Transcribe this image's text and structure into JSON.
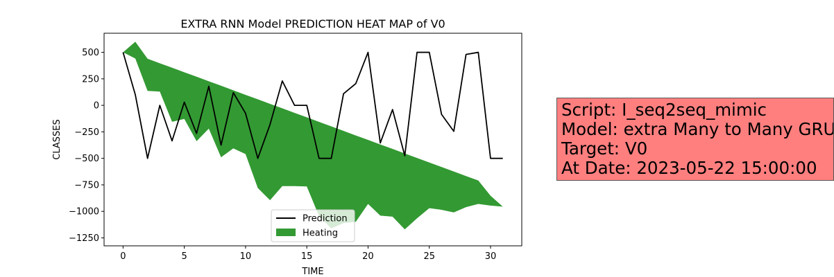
{
  "chart_data": {
    "type": "line",
    "title": "EXTRA RNN Model PREDICTION HEAT MAP of V0",
    "xlabel": "TIME",
    "ylabel": "CLASSES",
    "xlim": [
      -1.55,
      32.55
    ],
    "ylim": [
      -1325,
      680
    ],
    "x_ticks": [
      0,
      5,
      10,
      15,
      20,
      25,
      30
    ],
    "y_ticks": [
      500,
      250,
      0,
      -250,
      -500,
      -750,
      -1000,
      -1250
    ],
    "x_tick_labels": [
      "0",
      "5",
      "10",
      "15",
      "20",
      "25",
      "30"
    ],
    "y_tick_labels": [
      "500",
      "250",
      "0",
      "−250",
      "−500",
      "−750",
      "−1000",
      "−1250"
    ],
    "grid": false,
    "legend_position": "lower center",
    "series": [
      {
        "name": "Prediction",
        "type": "line",
        "color": "#000000",
        "x": [
          0,
          1,
          2,
          3,
          4,
          5,
          6,
          7,
          8,
          9,
          10,
          11,
          12,
          13,
          14,
          15,
          16,
          17,
          18,
          19,
          20,
          21,
          22,
          23,
          24,
          25,
          26,
          27,
          28,
          29,
          30,
          31
        ],
        "y": [
          500,
          100,
          -500,
          0,
          -335,
          30,
          -265,
          180,
          -375,
          120,
          -75,
          -500,
          -180,
          230,
          0,
          0,
          -500,
          -500,
          110,
          205,
          500,
          -355,
          -40,
          -475,
          500,
          500,
          -85,
          -245,
          480,
          500,
          -500,
          -500
        ]
      },
      {
        "name": "Heating",
        "type": "area",
        "color": "#339933",
        "x": [
          0,
          1,
          2,
          3,
          4,
          5,
          6,
          7,
          8,
          9,
          10,
          11,
          12,
          13,
          14,
          15,
          16,
          17,
          18,
          19,
          20,
          21,
          22,
          23,
          24,
          25,
          26,
          27,
          28,
          29,
          30,
          31
        ],
        "y_upper": [
          500,
          600,
          440,
          397,
          355,
          312,
          270,
          227,
          185,
          142,
          99,
          57,
          14,
          -28,
          -71,
          -113,
          -156,
          -198,
          -241,
          -284,
          -326,
          -369,
          -411,
          -454,
          -496,
          -539,
          -581,
          -624,
          -667,
          -709,
          -852,
          -955
        ],
        "y_lower": [
          500,
          442,
          136,
          130,
          -155,
          -128,
          -338,
          -220,
          -490,
          -406,
          -460,
          -780,
          -895,
          -762,
          -762,
          -765,
          -1045,
          -1160,
          -1110,
          -1098,
          -930,
          -1040,
          -1050,
          -1170,
          -1065,
          -970,
          -985,
          -1010,
          -960,
          -930,
          -945,
          -955
        ]
      }
    ]
  },
  "info_box": {
    "lines": [
      "Script: I_seq2seq_mimic",
      "Model: extra Many to Many GRU",
      "Target: V0",
      "At Date: 2023-05-22 15:00:00"
    ]
  },
  "colors": {
    "info_box_background": "#ff7f7f",
    "prediction_line": "#000000",
    "heating_fill": "#339933"
  }
}
